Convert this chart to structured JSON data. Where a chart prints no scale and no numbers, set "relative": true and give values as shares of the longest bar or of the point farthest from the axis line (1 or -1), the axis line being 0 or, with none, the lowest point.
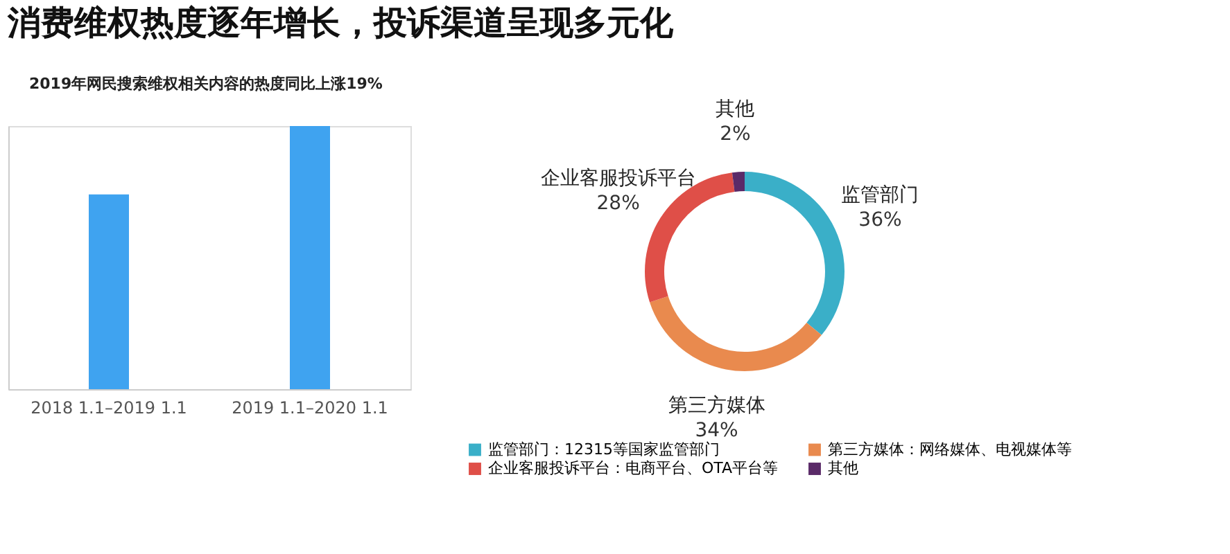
{
  "chart_data": [
    {
      "type": "bar",
      "title": "消费维权热度逐年增长，投诉渠道呈现多元化",
      "categories": [
        "2018 1.1–2019 1.1",
        "2019 1.1–2020 1.1"
      ],
      "values": [
        0.74,
        1
      ],
      "color": "#3fa3f0",
      "relative": true,
      "grid": false,
      "annotations": [
        "2019年网民搜索维权相关内容的热度同比上涨19%"
      ]
    },
    {
      "type": "donut",
      "categories": [
        "监管部门：12315等国家监管部门",
        "第三方媒体：网络媒体、电视媒体等",
        "企业客服投诉平台：电商平台、OTA平台等",
        "其他"
      ],
      "values": [
        36,
        34,
        28,
        2
      ],
      "colors": [
        "#3aafc8",
        "#e98a4e",
        "#df4f48",
        "#5a2a68"
      ],
      "legend": "bottom",
      "value_labels": [
        "36%",
        "34%",
        "28%",
        "2%"
      ],
      "annotations": [
        "监管部门",
        "第三方媒体",
        "企业客服投诉平台",
        "其他"
      ]
    }
  ]
}
